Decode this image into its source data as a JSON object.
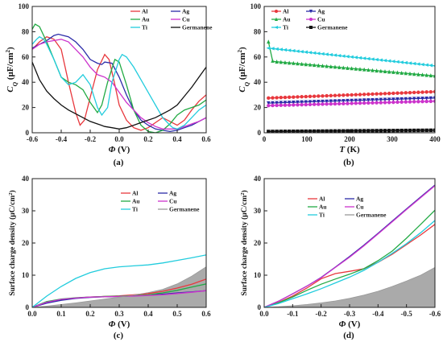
{
  "chart_data": [
    {
      "id": "a",
      "type": "line",
      "panel_label": "(a)",
      "xlabel_symbol": "Φ",
      "xlabel_unit": "(V)",
      "ylabel_symbol": "C",
      "ylabel_sub": "Q",
      "ylabel_unit": "(μF/cm",
      "ylabel_unit_sup": "2",
      "ylabel_unit_close": ")",
      "xlim": [
        -0.6,
        0.6
      ],
      "ylim": [
        0,
        100
      ],
      "xticks": [
        -0.6,
        -0.4,
        -0.2,
        0.0,
        0.2,
        0.4,
        0.6
      ],
      "xtick_labels": [
        "-0.6",
        "-0.4",
        "-0.2",
        "0.0",
        "0.2",
        "0.4",
        "0.6"
      ],
      "yticks": [
        0,
        20,
        40,
        60,
        80,
        100
      ],
      "ytick_labels": [
        "0",
        "20",
        "40",
        "60",
        "80",
        "100"
      ],
      "legend_position": "top-right",
      "series": [
        {
          "name": "Al",
          "color": "#e8383d",
          "x": [
            -0.6,
            -0.55,
            -0.5,
            -0.45,
            -0.4,
            -0.35,
            -0.3,
            -0.27,
            -0.24,
            -0.2,
            -0.15,
            -0.1,
            -0.07,
            -0.03,
            0.0,
            0.05,
            0.1,
            0.15,
            0.2,
            0.25,
            0.3,
            0.35,
            0.4,
            0.45,
            0.5,
            0.55,
            0.6
          ],
          "y": [
            66,
            72,
            76,
            74,
            66,
            40,
            16,
            6,
            10,
            28,
            50,
            62,
            58,
            38,
            22,
            10,
            4,
            2,
            4,
            8,
            12,
            9,
            6,
            10,
            18,
            25,
            30
          ]
        },
        {
          "name": "Ag",
          "color": "#2b2ba8",
          "x": [
            -0.6,
            -0.55,
            -0.5,
            -0.45,
            -0.42,
            -0.35,
            -0.3,
            -0.25,
            -0.2,
            -0.15,
            -0.12,
            -0.1,
            -0.05,
            0.0,
            0.05,
            0.1,
            0.15,
            0.2,
            0.25,
            0.3,
            0.35,
            0.4,
            0.45,
            0.5,
            0.55,
            0.6
          ],
          "y": [
            67,
            70,
            73,
            77,
            78,
            76,
            72,
            66,
            58,
            55,
            54,
            56,
            55,
            44,
            30,
            18,
            10,
            6,
            3,
            2,
            1,
            2,
            4,
            6,
            9,
            12
          ]
        },
        {
          "name": "Au",
          "color": "#22aa44",
          "x": [
            -0.6,
            -0.58,
            -0.55,
            -0.5,
            -0.45,
            -0.4,
            -0.35,
            -0.3,
            -0.25,
            -0.2,
            -0.15,
            -0.12,
            -0.08,
            -0.03,
            0.0,
            0.05,
            0.1,
            0.15,
            0.2,
            0.25,
            0.3,
            0.35,
            0.4,
            0.45,
            0.5,
            0.55,
            0.6
          ],
          "y": [
            82,
            86,
            84,
            72,
            58,
            44,
            40,
            38,
            34,
            24,
            16,
            22,
            40,
            58,
            56,
            38,
            18,
            6,
            1,
            0,
            2,
            7,
            14,
            18,
            20,
            22,
            26
          ]
        },
        {
          "name": "Cu",
          "color": "#cc33cc",
          "x": [
            -0.6,
            -0.55,
            -0.5,
            -0.45,
            -0.4,
            -0.35,
            -0.3,
            -0.25,
            -0.2,
            -0.15,
            -0.1,
            -0.05,
            0.0,
            0.05,
            0.1,
            0.15,
            0.2,
            0.25,
            0.3,
            0.35,
            0.4,
            0.45,
            0.5,
            0.55,
            0.6
          ],
          "y": [
            66,
            70,
            72,
            73,
            74,
            72,
            66,
            60,
            52,
            46,
            44,
            40,
            32,
            24,
            18,
            12,
            8,
            5,
            3,
            3,
            3,
            5,
            7,
            9,
            12
          ]
        },
        {
          "name": "Ti",
          "color": "#22ccdd",
          "x": [
            -0.6,
            -0.57,
            -0.55,
            -0.52,
            -0.5,
            -0.45,
            -0.4,
            -0.35,
            -0.3,
            -0.25,
            -0.2,
            -0.15,
            -0.12,
            -0.08,
            -0.05,
            0.0,
            0.02,
            0.05,
            0.1,
            0.15,
            0.2,
            0.25,
            0.3,
            0.35,
            0.37,
            0.4,
            0.45,
            0.5,
            0.55,
            0.6
          ],
          "y": [
            70,
            74,
            76,
            74,
            70,
            58,
            44,
            38,
            40,
            46,
            38,
            20,
            14,
            20,
            40,
            58,
            62,
            60,
            52,
            42,
            32,
            22,
            12,
            6,
            4,
            3,
            6,
            12,
            18,
            22
          ]
        },
        {
          "name": "Germanene",
          "color": "#111111",
          "x": [
            -0.6,
            -0.55,
            -0.5,
            -0.45,
            -0.4,
            -0.35,
            -0.3,
            -0.25,
            -0.2,
            -0.15,
            -0.1,
            -0.05,
            0.0,
            0.05,
            0.1,
            0.15,
            0.2,
            0.25,
            0.3,
            0.35,
            0.4,
            0.45,
            0.5,
            0.55,
            0.6
          ],
          "y": [
            56,
            42,
            33,
            27,
            22,
            18,
            15,
            12,
            9,
            7,
            5,
            4,
            3,
            4,
            6,
            8,
            10,
            12,
            15,
            18,
            22,
            29,
            36,
            44,
            52
          ]
        }
      ]
    },
    {
      "id": "b",
      "type": "line",
      "panel_label": "(b)",
      "xlabel_symbol": "T",
      "xlabel_unit": "(K)",
      "ylabel_symbol": "C",
      "ylabel_sub": "Q",
      "ylabel_unit": "(μF/cm",
      "ylabel_unit_sup": "2",
      "ylabel_unit_close": ")",
      "xlim": [
        0,
        400
      ],
      "ylim": [
        0,
        100
      ],
      "xticks": [
        0,
        100,
        200,
        300,
        400
      ],
      "xtick_labels": [
        "0",
        "100",
        "200",
        "300",
        "400"
      ],
      "yticks": [
        0,
        20,
        40,
        60,
        80,
        100
      ],
      "ytick_labels": [
        "0",
        "20",
        "40",
        "60",
        "80",
        "100"
      ],
      "legend_position": "top-left",
      "series": [
        {
          "name": "Al",
          "color": "#e8383d",
          "marker": "circle",
          "x": [
            10,
            400
          ],
          "y": [
            27.5,
            32.5
          ]
        },
        {
          "name": "Ag",
          "color": "#2b2ba8",
          "marker": "triangle-down",
          "x": [
            10,
            400
          ],
          "y": [
            23.5,
            27.5
          ]
        },
        {
          "name": "Au",
          "color": "#22aa44",
          "marker": "triangle-up",
          "x": [
            10,
            20,
            400
          ],
          "y": [
            72,
            56.5,
            45
          ]
        },
        {
          "name": "Cu",
          "color": "#cc33cc",
          "marker": "circle",
          "x": [
            10,
            400
          ],
          "y": [
            21.5,
            25
          ]
        },
        {
          "name": "Ti",
          "color": "#22ccdd",
          "marker": "triangle-left",
          "x": [
            10,
            400
          ],
          "y": [
            67,
            53
          ]
        },
        {
          "name": "Germanene",
          "color": "#111111",
          "marker": "square",
          "x": [
            10,
            400
          ],
          "y": [
            1,
            2
          ]
        }
      ]
    },
    {
      "id": "c",
      "type": "area",
      "panel_label": "(c)",
      "xlabel_symbol": "Φ",
      "xlabel_unit": "(V)",
      "ylabel": "Surface charge density",
      "ylabel_unit": "(μC/cm",
      "ylabel_unit_sup": "2",
      "ylabel_unit_close": ")",
      "xlim": [
        0,
        0.6
      ],
      "ylim": [
        0,
        40
      ],
      "xticks": [
        0.0,
        0.1,
        0.2,
        0.3,
        0.4,
        0.5,
        0.6
      ],
      "xtick_labels": [
        "0.0",
        "0.1",
        "0.2",
        "0.3",
        "0.4",
        "0.5",
        "0.6"
      ],
      "yticks": [
        0,
        10,
        20,
        30,
        40
      ],
      "ytick_labels": [
        "0",
        "10",
        "20",
        "30",
        "40"
      ],
      "legend_position": "top-right",
      "series": [
        {
          "name": "Al",
          "color": "#e8383d",
          "x": [
            0,
            0.05,
            0.1,
            0.15,
            0.2,
            0.25,
            0.3,
            0.35,
            0.4,
            0.45,
            0.5,
            0.55,
            0.6
          ],
          "y": [
            0,
            1.6,
            2.4,
            2.9,
            3.2,
            3.4,
            3.6,
            3.9,
            4.3,
            5.0,
            6.0,
            7.2,
            8.8
          ]
        },
        {
          "name": "Ag",
          "color": "#2b2ba8",
          "x": [
            0,
            0.05,
            0.1,
            0.15,
            0.2,
            0.25,
            0.3,
            0.35,
            0.4,
            0.45,
            0.5,
            0.55,
            0.6
          ],
          "y": [
            0,
            1.3,
            2.2,
            2.8,
            3.1,
            3.3,
            3.4,
            3.6,
            3.8,
            4.1,
            4.5,
            4.8,
            5.2
          ]
        },
        {
          "name": "Au",
          "color": "#22aa44",
          "x": [
            0,
            0.05,
            0.1,
            0.15,
            0.2,
            0.25,
            0.3,
            0.35,
            0.4,
            0.45,
            0.5,
            0.55,
            0.6
          ],
          "y": [
            0,
            1.8,
            2.6,
            3.0,
            3.2,
            3.4,
            3.5,
            3.6,
            3.9,
            4.5,
            5.3,
            6.3,
            7.3
          ]
        },
        {
          "name": "Cu",
          "color": "#cc33cc",
          "x": [
            0,
            0.05,
            0.1,
            0.15,
            0.2,
            0.25,
            0.3,
            0.35,
            0.4,
            0.45,
            0.5,
            0.55,
            0.6
          ],
          "y": [
            0,
            1.6,
            2.5,
            2.9,
            3.2,
            3.3,
            3.4,
            3.5,
            3.7,
            3.9,
            4.3,
            4.7,
            5.2
          ]
        },
        {
          "name": "Ti",
          "color": "#22ccdd",
          "x": [
            0,
            0.05,
            0.1,
            0.15,
            0.2,
            0.25,
            0.3,
            0.35,
            0.4,
            0.45,
            0.5,
            0.55,
            0.6
          ],
          "y": [
            0,
            3.5,
            6.5,
            9.0,
            10.8,
            12.0,
            12.6,
            12.9,
            13.2,
            13.8,
            14.6,
            15.4,
            16.3
          ]
        },
        {
          "name": "Germanene",
          "color": "#999999",
          "fill": "#aaaaaa",
          "x": [
            0,
            0.05,
            0.1,
            0.15,
            0.2,
            0.25,
            0.3,
            0.35,
            0.4,
            0.45,
            0.5,
            0.55,
            0.6
          ],
          "y": [
            0,
            0.4,
            0.9,
            1.4,
            2.0,
            2.6,
            3.2,
            3.8,
            4.6,
            5.6,
            7.3,
            9.7,
            12.6
          ]
        }
      ]
    },
    {
      "id": "d",
      "type": "area",
      "panel_label": "(d)",
      "xlabel_symbol": "Φ",
      "xlabel_unit": "(V)",
      "ylabel": "Surface charge density",
      "ylabel_unit": "(μC/cm",
      "ylabel_unit_sup": "2",
      "ylabel_unit_close": ")",
      "xlim": [
        0,
        -0.6
      ],
      "ylim": [
        0,
        40
      ],
      "xticks": [
        0.0,
        -0.1,
        -0.2,
        -0.3,
        -0.4,
        -0.5,
        -0.6
      ],
      "xtick_labels": [
        "0.0",
        "-0.1",
        "-0.2",
        "-0.3",
        "-0.4",
        "-0.5",
        "-0.6"
      ],
      "yticks": [
        0,
        10,
        20,
        30,
        40
      ],
      "ytick_labels": [
        "0",
        "10",
        "20",
        "30",
        "40"
      ],
      "legend_position": "top-left",
      "series": [
        {
          "name": "Al",
          "color": "#e8383d",
          "x": [
            0,
            -0.05,
            -0.1,
            -0.15,
            -0.2,
            -0.25,
            -0.3,
            -0.35,
            -0.4,
            -0.45,
            -0.5,
            -0.55,
            -0.6
          ],
          "y": [
            0,
            1.5,
            3.5,
            6.0,
            8.9,
            10.5,
            11.2,
            12.0,
            14.0,
            16.5,
            19.5,
            22.5,
            25.8
          ]
        },
        {
          "name": "Ag",
          "color": "#2b2ba8",
          "x": [
            0,
            -0.05,
            -0.1,
            -0.15,
            -0.2,
            -0.25,
            -0.3,
            -0.35,
            -0.4,
            -0.45,
            -0.5,
            -0.55,
            -0.6
          ],
          "y": [
            0,
            1.9,
            4.2,
            6.6,
            9.3,
            12.5,
            15.8,
            19.3,
            23.0,
            26.8,
            30.6,
            34.3,
            38.0
          ]
        },
        {
          "name": "Au",
          "color": "#22aa44",
          "x": [
            0,
            -0.05,
            -0.1,
            -0.15,
            -0.2,
            -0.25,
            -0.3,
            -0.35,
            -0.4,
            -0.45,
            -0.5,
            -0.55,
            -0.6
          ],
          "y": [
            0,
            1.4,
            3.2,
            5.3,
            7.2,
            8.8,
            10.3,
            12.0,
            14.5,
            17.5,
            21.5,
            25.8,
            30.2
          ]
        },
        {
          "name": "Cu",
          "color": "#cc33cc",
          "x": [
            0,
            -0.05,
            -0.1,
            -0.15,
            -0.2,
            -0.25,
            -0.3,
            -0.35,
            -0.4,
            -0.45,
            -0.5,
            -0.55,
            -0.6
          ],
          "y": [
            0,
            1.9,
            4.2,
            6.6,
            9.2,
            12.4,
            15.6,
            19.1,
            22.8,
            26.6,
            30.4,
            34.1,
            37.8
          ]
        },
        {
          "name": "Ti",
          "color": "#22ccdd",
          "x": [
            0,
            -0.05,
            -0.1,
            -0.15,
            -0.2,
            -0.25,
            -0.3,
            -0.35,
            -0.4,
            -0.45,
            -0.5,
            -0.55,
            -0.6
          ],
          "y": [
            0,
            1.2,
            2.7,
            4.2,
            5.8,
            7.6,
            9.4,
            11.5,
            14.0,
            16.8,
            19.8,
            23.2,
            27.0
          ]
        },
        {
          "name": "Germanene",
          "color": "#999999",
          "fill": "#aaaaaa",
          "x": [
            0,
            -0.05,
            -0.1,
            -0.15,
            -0.2,
            -0.25,
            -0.3,
            -0.35,
            -0.4,
            -0.45,
            -0.5,
            -0.55,
            -0.6
          ],
          "y": [
            0,
            0.2,
            0.5,
            0.9,
            1.4,
            2.0,
            2.8,
            3.8,
            5.0,
            6.5,
            8.2,
            10.0,
            12.4
          ]
        }
      ]
    }
  ]
}
